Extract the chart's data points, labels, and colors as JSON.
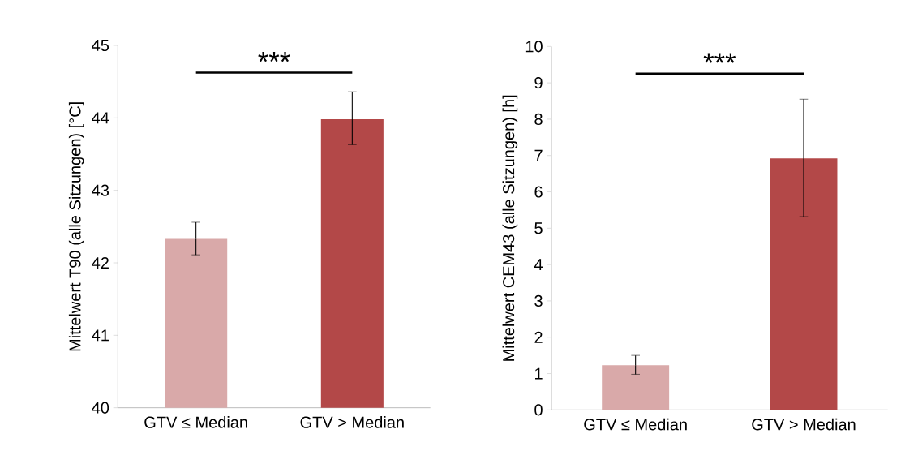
{
  "chart_data": [
    {
      "type": "bar",
      "ylabel": "Mittelwert T90 (alle Sitzungen) [°C]",
      "categories": [
        "GTV ≤ Median",
        "GTV > Median"
      ],
      "values": [
        42.33,
        43.98
      ],
      "colors": [
        "#d9a9a9",
        "#b34848"
      ],
      "errors": [
        [
          42.11,
          42.56
        ],
        [
          43.63,
          44.36
        ]
      ],
      "ylim": [
        40,
        45
      ],
      "yticks": [
        40,
        41,
        42,
        43,
        44,
        45
      ],
      "annotations": [
        "***"
      ]
    },
    {
      "type": "bar",
      "ylabel": "Mittelwert CEM43 (alle Sitzungen) [h]",
      "categories": [
        "GTV ≤ Median",
        "GTV > Median"
      ],
      "values": [
        1.23,
        6.92
      ],
      "colors": [
        "#d9a9a9",
        "#b34848"
      ],
      "errors": [
        [
          0.98,
          1.5
        ],
        [
          5.32,
          8.55
        ]
      ],
      "ylim": [
        0,
        10
      ],
      "yticks": [
        0,
        1,
        2,
        3,
        4,
        5,
        6,
        7,
        8,
        9,
        10
      ],
      "annotations": [
        "***"
      ]
    }
  ]
}
